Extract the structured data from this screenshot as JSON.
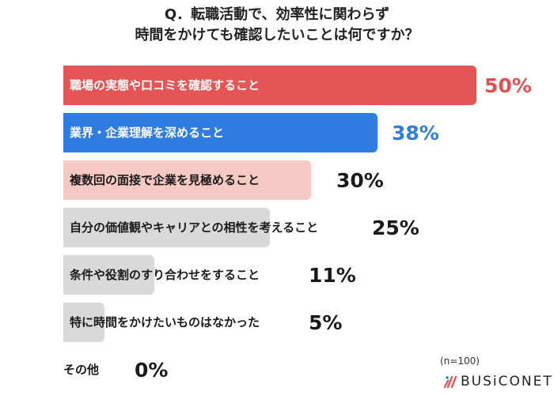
{
  "title": {
    "line1": "Q．転職活動で、効率性に関わらず",
    "line2": "時間をかけても確認したいことは何ですか？"
  },
  "sample_note": "(n=100)",
  "brand": {
    "name": "BUSiCONET",
    "icon": "busiconet-slash-logo-icon"
  },
  "colors": {
    "red": "#e55555",
    "blue": "#2f7de1",
    "pink": "#f6c9c4",
    "gray": "#d9d9d9",
    "red_text": "#e05252",
    "blue_text": "#2f7de1",
    "dark_text": "#1a1a1a"
  },
  "chart_data": {
    "type": "bar",
    "orientation": "horizontal",
    "title": "Q．転職活動で、効率性に関わらず 時間をかけても確認したいことは何ですか？",
    "xlabel": "",
    "ylabel": "",
    "unit": "%",
    "sample_size": 100,
    "grid": false,
    "legend": null,
    "categories": [
      "職場の実態や口コミを確認すること",
      "業界・企業理解を深めること",
      "複数回の面接で企業を見極めること",
      "自分の価値観やキャリアとの相性を考えること",
      "条件や役割のすり合わせをすること",
      "特に時間をかけたいものはなかった",
      "その他"
    ],
    "values": [
      50,
      38,
      30,
      25,
      11,
      5,
      0
    ],
    "labels": [
      "50%",
      "38%",
      "30%",
      "25%",
      "11%",
      "5%",
      "0%"
    ]
  },
  "rows": [
    {
      "label": "職場の実態や口コミを確認すること",
      "pct": "50%"
    },
    {
      "label": "業界・企業理解を深めること",
      "pct": "38%"
    },
    {
      "label": "複数回の面接で企業を見極めること",
      "pct": "30%"
    },
    {
      "label": "自分の価値観やキャリアとの相性を考えること",
      "pct": "25%"
    },
    {
      "label": "条件や役割のすり合わせをすること",
      "pct": "11%"
    },
    {
      "label": "特に時間をかけたいものはなかった",
      "pct": "5%"
    },
    {
      "label": "その他",
      "pct": "0%"
    }
  ]
}
